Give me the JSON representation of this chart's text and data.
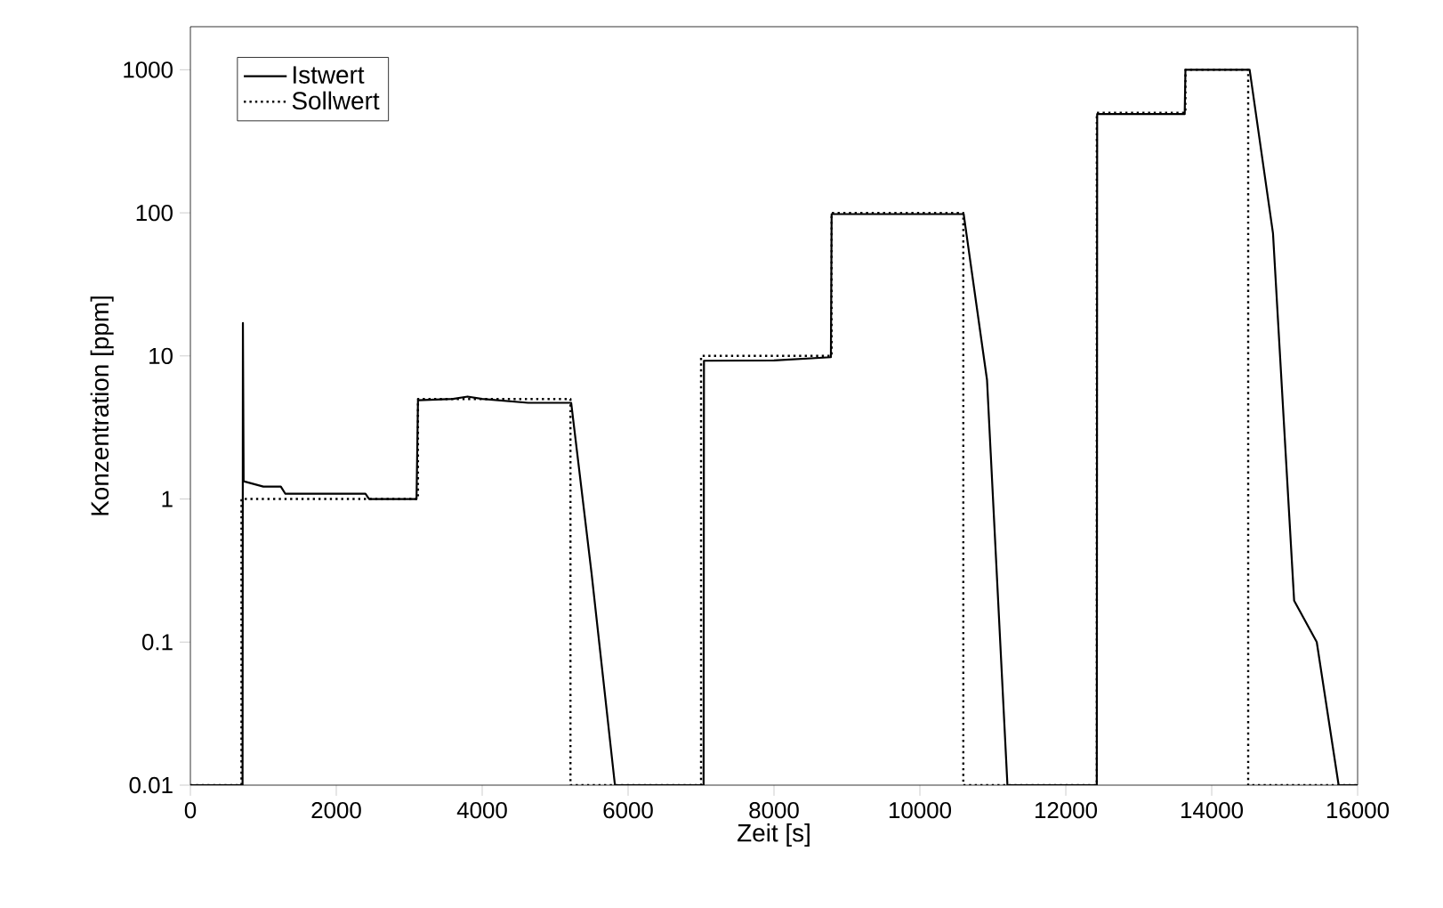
{
  "chart_data": {
    "type": "line",
    "xlabel": "Zeit [s]",
    "ylabel": "Konzentration [ppm]",
    "log": "y",
    "xlim": [
      0,
      16000
    ],
    "ylim": [
      0.01,
      2000
    ],
    "xticks": [
      0,
      2000,
      4000,
      6000,
      8000,
      10000,
      12000,
      14000,
      16000
    ],
    "yticks": [
      0.01,
      0.1,
      1,
      10,
      100,
      1000
    ],
    "grid": false,
    "legend": "top left",
    "marker": "none",
    "series": [
      {
        "name": "Istwert",
        "color": "#000000",
        "line_style": "solid",
        "x": [
          0,
          715,
          720,
          730,
          1000,
          1240,
          1300,
          2400,
          2450,
          3100,
          3120,
          3600,
          3800,
          4000,
          4630,
          5220,
          5500,
          5820,
          7035,
          7040,
          8000,
          8780,
          8790,
          10600,
          10920,
          11200,
          12425,
          12430,
          13630,
          13640,
          14520,
          14840,
          15130,
          15440,
          15740,
          16000
        ],
        "values": [
          0.01,
          0.01,
          17,
          1.33,
          1.22,
          1.22,
          1.09,
          1.09,
          1.0,
          1.0,
          4.9,
          5.0,
          5.2,
          5.0,
          4.7,
          4.7,
          0.3,
          0.01,
          0.01,
          9.25,
          9.3,
          9.8,
          98,
          98,
          6.8,
          0.01,
          0.01,
          490,
          490,
          1000,
          1000,
          72,
          0.195,
          0.1,
          0.01,
          0.01
        ]
      },
      {
        "name": "Sollwert",
        "color": "#000000",
        "line_style": "dotted",
        "x": [
          0,
          700,
          700,
          3120,
          3120,
          5210,
          5210,
          7000,
          7000,
          8790,
          8790,
          10595,
          10595,
          12425,
          12425,
          13640,
          13640,
          14500,
          14500,
          16000
        ],
        "values": [
          0.01,
          0.01,
          1,
          1,
          5,
          5,
          0.01,
          0.01,
          10,
          10,
          100,
          100,
          0.01,
          0.01,
          500,
          500,
          1000,
          1000,
          0.01,
          0.01
        ]
      }
    ]
  }
}
